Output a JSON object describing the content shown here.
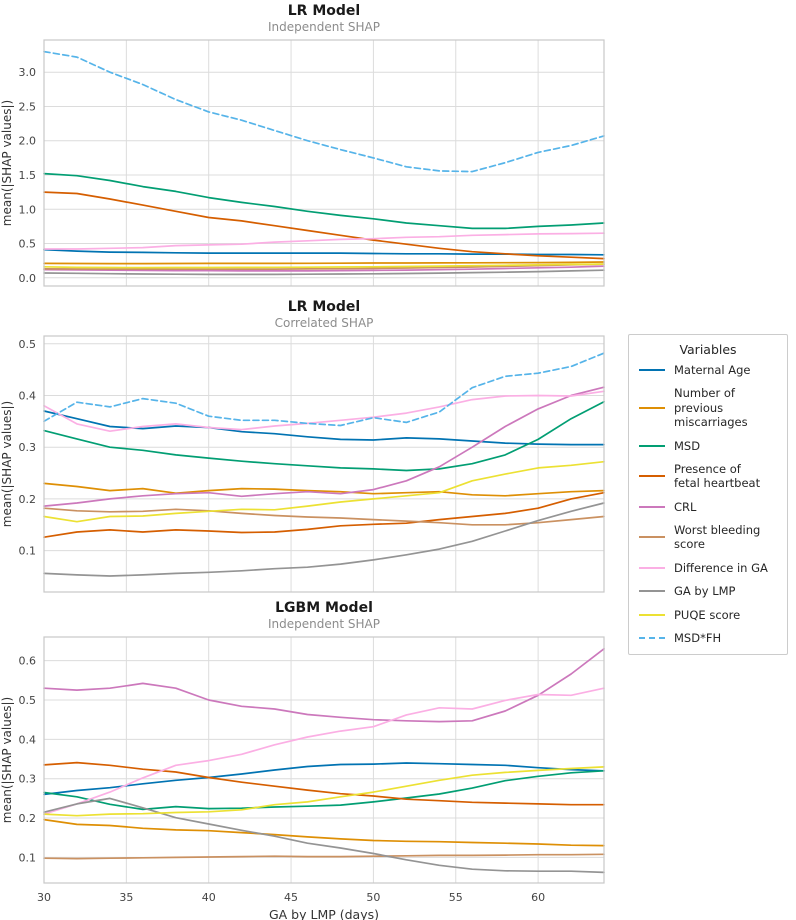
{
  "figure": {
    "background_color": "#ffffff",
    "grid_color": "#dcdcdc",
    "spine_color": "#c8c8c8"
  },
  "legend": {
    "title": "Variables",
    "entries": [
      {
        "label": "Maternal Age",
        "color": "#0173b2",
        "dash": false
      },
      {
        "label": "Number of\nprevious miscarriages",
        "color": "#de8f05",
        "dash": false
      },
      {
        "label": "MSD",
        "color": "#029e73",
        "dash": false
      },
      {
        "label": "Presence of\nfetal heartbeat",
        "color": "#d55e00",
        "dash": false
      },
      {
        "label": "CRL",
        "color": "#cc78bc",
        "dash": false
      },
      {
        "label": "Worst bleeding score",
        "color": "#ca9161",
        "dash": false
      },
      {
        "label": "Difference in GA",
        "color": "#fbafe4",
        "dash": false
      },
      {
        "label": "GA by LMP",
        "color": "#949494",
        "dash": false
      },
      {
        "label": "PUQE score",
        "color": "#ece133",
        "dash": false
      },
      {
        "label": "MSD*FH",
        "color": "#56b4e9",
        "dash": true
      }
    ]
  },
  "chart_data": [
    {
      "type": "line",
      "title": "LR Model",
      "subtitle": "Independent SHAP",
      "xlabel": "",
      "ylabel": "mean(|SHAP values|)",
      "xlim": [
        30,
        64
      ],
      "ylim": [
        -0.12,
        3.47
      ],
      "xticks": [
        30,
        35,
        40,
        45,
        50,
        55,
        60
      ],
      "yticks": [
        0.0,
        0.5,
        1.0,
        1.5,
        2.0,
        2.5,
        3.0
      ],
      "show_xticklabels": false,
      "grid": true,
      "x": [
        30,
        32,
        34,
        36,
        38,
        40,
        42,
        44,
        46,
        48,
        50,
        52,
        54,
        56,
        58,
        60,
        62,
        64
      ],
      "series": [
        {
          "name": "Maternal Age",
          "color": "#0173b2",
          "dash": false,
          "values": [
            0.41,
            0.39,
            0.375,
            0.37,
            0.365,
            0.36,
            0.36,
            0.36,
            0.36,
            0.36,
            0.355,
            0.35,
            0.35,
            0.345,
            0.345,
            0.34,
            0.34,
            0.335
          ]
        },
        {
          "name": "Number of previous miscarriages",
          "color": "#de8f05",
          "dash": false,
          "values": [
            0.21,
            0.208,
            0.207,
            0.207,
            0.208,
            0.21,
            0.21,
            0.21,
            0.212,
            0.213,
            0.215,
            0.215,
            0.217,
            0.218,
            0.22,
            0.222,
            0.225,
            0.23
          ]
        },
        {
          "name": "MSD",
          "color": "#029e73",
          "dash": false,
          "values": [
            1.52,
            1.49,
            1.42,
            1.33,
            1.26,
            1.17,
            1.1,
            1.04,
            0.97,
            0.91,
            0.86,
            0.8,
            0.76,
            0.72,
            0.72,
            0.75,
            0.77,
            0.8
          ]
        },
        {
          "name": "Presence of fetal heartbeat",
          "color": "#d55e00",
          "dash": false,
          "values": [
            1.25,
            1.23,
            1.15,
            1.06,
            0.97,
            0.88,
            0.83,
            0.76,
            0.69,
            0.62,
            0.55,
            0.49,
            0.43,
            0.38,
            0.35,
            0.32,
            0.3,
            0.28
          ]
        },
        {
          "name": "CRL",
          "color": "#cc78bc",
          "dash": false,
          "values": [
            0.12,
            0.115,
            0.11,
            0.108,
            0.105,
            0.103,
            0.1,
            0.1,
            0.1,
            0.105,
            0.108,
            0.112,
            0.118,
            0.125,
            0.135,
            0.145,
            0.155,
            0.17
          ]
        },
        {
          "name": "Worst bleeding score",
          "color": "#ca9161",
          "dash": false,
          "values": [
            0.13,
            0.128,
            0.127,
            0.126,
            0.125,
            0.125,
            0.126,
            0.127,
            0.13,
            0.133,
            0.137,
            0.142,
            0.15,
            0.158,
            0.168,
            0.178,
            0.19,
            0.2
          ]
        },
        {
          "name": "Difference in GA",
          "color": "#fbafe4",
          "dash": false,
          "values": [
            0.42,
            0.42,
            0.43,
            0.44,
            0.47,
            0.48,
            0.49,
            0.52,
            0.54,
            0.56,
            0.57,
            0.59,
            0.6,
            0.62,
            0.63,
            0.64,
            0.645,
            0.65
          ]
        },
        {
          "name": "GA by LMP",
          "color": "#949494",
          "dash": false,
          "values": [
            0.07,
            0.065,
            0.06,
            0.055,
            0.052,
            0.05,
            0.05,
            0.05,
            0.052,
            0.055,
            0.058,
            0.062,
            0.068,
            0.075,
            0.082,
            0.09,
            0.1,
            0.11
          ]
        },
        {
          "name": "PUQE score",
          "color": "#ece133",
          "dash": false,
          "values": [
            0.16,
            0.152,
            0.15,
            0.149,
            0.15,
            0.15,
            0.151,
            0.153,
            0.155,
            0.158,
            0.16,
            0.165,
            0.17,
            0.176,
            0.182,
            0.19,
            0.195,
            0.2
          ]
        },
        {
          "name": "MSD*FH",
          "color": "#56b4e9",
          "dash": true,
          "values": [
            3.3,
            3.22,
            3.0,
            2.82,
            2.6,
            2.42,
            2.3,
            2.15,
            2.0,
            1.87,
            1.75,
            1.62,
            1.56,
            1.55,
            1.68,
            1.83,
            1.93,
            2.07
          ]
        }
      ]
    },
    {
      "type": "line",
      "title": "LR Model",
      "subtitle": "Correlated SHAP",
      "xlabel": "",
      "ylabel": "mean(|SHAP values|)",
      "xlim": [
        30,
        64
      ],
      "ylim": [
        0.02,
        0.515
      ],
      "xticks": [
        30,
        35,
        40,
        45,
        50,
        55,
        60
      ],
      "yticks": [
        0.1,
        0.2,
        0.3,
        0.4,
        0.5
      ],
      "show_xticklabels": false,
      "grid": true,
      "x": [
        30,
        32,
        34,
        36,
        38,
        40,
        42,
        44,
        46,
        48,
        50,
        52,
        54,
        56,
        58,
        60,
        62,
        64
      ],
      "series": [
        {
          "name": "Maternal Age",
          "color": "#0173b2",
          "dash": false,
          "values": [
            0.37,
            0.355,
            0.34,
            0.336,
            0.341,
            0.338,
            0.33,
            0.326,
            0.32,
            0.315,
            0.314,
            0.318,
            0.316,
            0.312,
            0.308,
            0.306,
            0.305,
            0.305
          ]
        },
        {
          "name": "Number of previous miscarriages",
          "color": "#de8f05",
          "dash": false,
          "values": [
            0.23,
            0.224,
            0.216,
            0.22,
            0.211,
            0.216,
            0.22,
            0.219,
            0.216,
            0.214,
            0.21,
            0.212,
            0.214,
            0.208,
            0.206,
            0.21,
            0.214,
            0.216
          ]
        },
        {
          "name": "MSD",
          "color": "#029e73",
          "dash": false,
          "values": [
            0.332,
            0.316,
            0.3,
            0.294,
            0.285,
            0.279,
            0.273,
            0.268,
            0.264,
            0.26,
            0.258,
            0.255,
            0.258,
            0.268,
            0.285,
            0.315,
            0.355,
            0.388
          ]
        },
        {
          "name": "Presence of fetal heartbeat",
          "color": "#d55e00",
          "dash": false,
          "values": [
            0.126,
            0.136,
            0.14,
            0.136,
            0.14,
            0.138,
            0.135,
            0.136,
            0.141,
            0.148,
            0.151,
            0.153,
            0.16,
            0.166,
            0.172,
            0.182,
            0.2,
            0.212
          ]
        },
        {
          "name": "CRL",
          "color": "#cc78bc",
          "dash": false,
          "values": [
            0.186,
            0.192,
            0.2,
            0.206,
            0.21,
            0.212,
            0.205,
            0.21,
            0.214,
            0.21,
            0.218,
            0.235,
            0.262,
            0.3,
            0.34,
            0.374,
            0.4,
            0.416
          ]
        },
        {
          "name": "Worst bleeding score",
          "color": "#ca9161",
          "dash": false,
          "values": [
            0.182,
            0.177,
            0.175,
            0.176,
            0.18,
            0.177,
            0.172,
            0.168,
            0.165,
            0.163,
            0.16,
            0.157,
            0.154,
            0.15,
            0.15,
            0.154,
            0.16,
            0.166
          ]
        },
        {
          "name": "Difference in GA",
          "color": "#fbafe4",
          "dash": false,
          "values": [
            0.38,
            0.345,
            0.331,
            0.34,
            0.345,
            0.338,
            0.334,
            0.341,
            0.346,
            0.352,
            0.358,
            0.366,
            0.378,
            0.392,
            0.399,
            0.4,
            0.399,
            0.408
          ]
        },
        {
          "name": "GA by LMP",
          "color": "#949494",
          "dash": false,
          "values": [
            0.056,
            0.053,
            0.051,
            0.053,
            0.056,
            0.058,
            0.061,
            0.065,
            0.068,
            0.074,
            0.082,
            0.092,
            0.103,
            0.118,
            0.138,
            0.158,
            0.176,
            0.192
          ]
        },
        {
          "name": "PUQE score",
          "color": "#ece133",
          "dash": false,
          "values": [
            0.166,
            0.156,
            0.166,
            0.167,
            0.172,
            0.176,
            0.18,
            0.179,
            0.186,
            0.194,
            0.2,
            0.206,
            0.212,
            0.235,
            0.248,
            0.26,
            0.265,
            0.272
          ]
        },
        {
          "name": "MSD*FH",
          "color": "#56b4e9",
          "dash": true,
          "values": [
            0.35,
            0.387,
            0.378,
            0.394,
            0.385,
            0.36,
            0.352,
            0.352,
            0.346,
            0.342,
            0.357,
            0.348,
            0.368,
            0.415,
            0.437,
            0.443,
            0.456,
            0.482
          ]
        }
      ]
    },
    {
      "type": "line",
      "title": "LGBM Model",
      "subtitle": "Independent SHAP",
      "xlabel": "GA by LMP (days)",
      "ylabel": "mean(|SHAP values|)",
      "xlim": [
        30,
        64
      ],
      "ylim": [
        0.035,
        0.66
      ],
      "xticks": [
        30,
        35,
        40,
        45,
        50,
        55,
        60
      ],
      "yticks": [
        0.1,
        0.2,
        0.3,
        0.4,
        0.5,
        0.6
      ],
      "show_xticklabels": true,
      "grid": true,
      "x": [
        30,
        32,
        34,
        36,
        38,
        40,
        42,
        44,
        46,
        48,
        50,
        52,
        54,
        56,
        58,
        60,
        62,
        64
      ],
      "series": [
        {
          "name": "Maternal Age",
          "color": "#0173b2",
          "dash": false,
          "values": [
            0.26,
            0.27,
            0.277,
            0.287,
            0.296,
            0.303,
            0.312,
            0.322,
            0.331,
            0.336,
            0.337,
            0.34,
            0.338,
            0.336,
            0.334,
            0.328,
            0.323,
            0.32
          ]
        },
        {
          "name": "Number of previous miscarriages",
          "color": "#de8f05",
          "dash": false,
          "values": [
            0.196,
            0.184,
            0.181,
            0.174,
            0.17,
            0.168,
            0.163,
            0.158,
            0.152,
            0.147,
            0.143,
            0.141,
            0.14,
            0.138,
            0.136,
            0.134,
            0.131,
            0.13
          ]
        },
        {
          "name": "MSD",
          "color": "#029e73",
          "dash": false,
          "values": [
            0.265,
            0.254,
            0.235,
            0.222,
            0.229,
            0.224,
            0.225,
            0.228,
            0.23,
            0.233,
            0.241,
            0.251,
            0.261,
            0.276,
            0.295,
            0.306,
            0.315,
            0.32
          ]
        },
        {
          "name": "Presence of fetal heartbeat",
          "color": "#d55e00",
          "dash": false,
          "values": [
            0.335,
            0.341,
            0.334,
            0.324,
            0.317,
            0.303,
            0.291,
            0.281,
            0.271,
            0.262,
            0.256,
            0.248,
            0.244,
            0.24,
            0.238,
            0.236,
            0.234,
            0.234
          ]
        },
        {
          "name": "CRL",
          "color": "#cc78bc",
          "dash": false,
          "values": [
            0.53,
            0.525,
            0.53,
            0.542,
            0.53,
            0.5,
            0.484,
            0.477,
            0.463,
            0.456,
            0.45,
            0.447,
            0.445,
            0.447,
            0.472,
            0.512,
            0.566,
            0.63
          ]
        },
        {
          "name": "Worst bleeding score",
          "color": "#ca9161",
          "dash": false,
          "values": [
            0.098,
            0.097,
            0.098,
            0.099,
            0.1,
            0.101,
            0.102,
            0.103,
            0.102,
            0.102,
            0.103,
            0.104,
            0.105,
            0.105,
            0.106,
            0.107,
            0.107,
            0.108
          ]
        },
        {
          "name": "Difference in GA",
          "color": "#fbafe4",
          "dash": false,
          "values": [
            0.21,
            0.236,
            0.266,
            0.302,
            0.334,
            0.346,
            0.362,
            0.386,
            0.406,
            0.421,
            0.432,
            0.462,
            0.48,
            0.477,
            0.499,
            0.514,
            0.512,
            0.53
          ]
        },
        {
          "name": "GA by LMP",
          "color": "#949494",
          "dash": false,
          "values": [
            0.215,
            0.236,
            0.25,
            0.226,
            0.201,
            0.185,
            0.169,
            0.154,
            0.136,
            0.124,
            0.11,
            0.094,
            0.08,
            0.07,
            0.066,
            0.065,
            0.065,
            0.062
          ]
        },
        {
          "name": "PUQE score",
          "color": "#ece133",
          "dash": false,
          "values": [
            0.21,
            0.206,
            0.21,
            0.211,
            0.214,
            0.216,
            0.221,
            0.234,
            0.241,
            0.254,
            0.266,
            0.281,
            0.296,
            0.309,
            0.316,
            0.321,
            0.326,
            0.33
          ]
        }
      ]
    }
  ]
}
